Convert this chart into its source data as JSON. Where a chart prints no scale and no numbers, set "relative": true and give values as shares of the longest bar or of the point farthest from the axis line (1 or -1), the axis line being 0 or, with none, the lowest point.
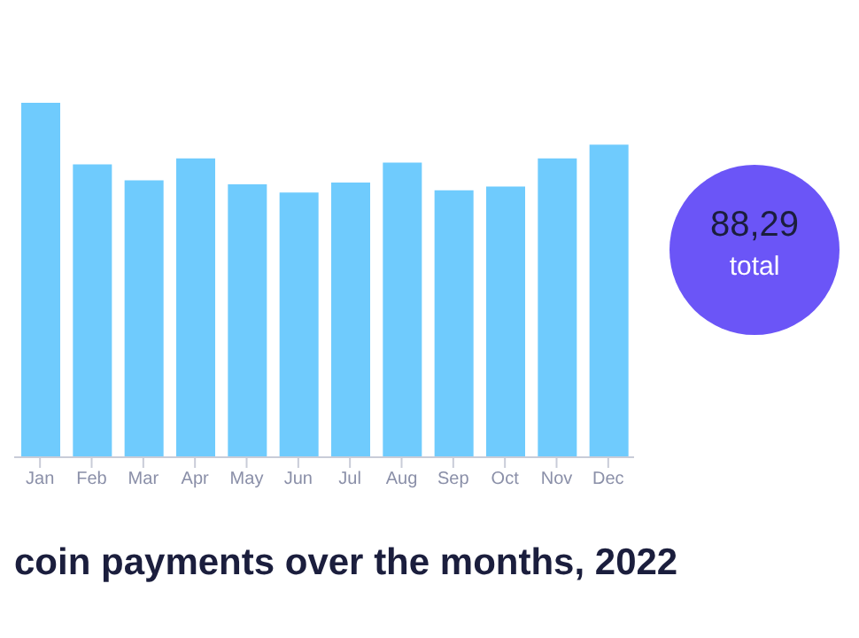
{
  "chart_data": {
    "type": "bar",
    "title": "coin payments over the months, 2022",
    "relative": true,
    "categories": [
      "Jan",
      "Feb",
      "Mar",
      "Apr",
      "May",
      "Jun",
      "Jul",
      "Aug",
      "Sep",
      "Oct",
      "Nov",
      "Dec"
    ],
    "values": [
      1,
      0.826,
      0.781,
      0.843,
      0.77,
      0.747,
      0.775,
      0.831,
      0.753,
      0.764,
      0.843,
      0.882
    ],
    "color": "#6fcbfd",
    "grid": false,
    "legend": false,
    "annotations": [
      "88,29",
      "total"
    ]
  }
}
